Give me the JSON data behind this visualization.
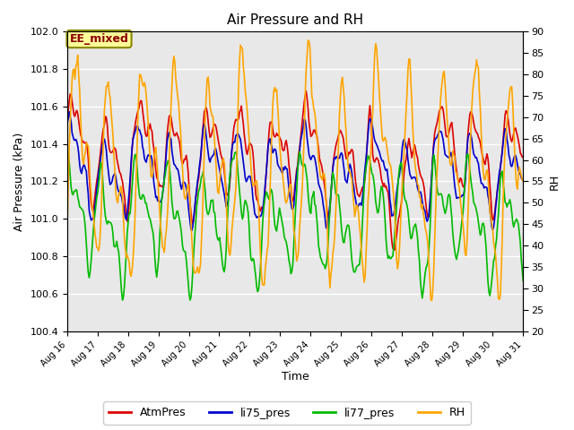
{
  "title": "Air Pressure and RH",
  "xlabel": "Time",
  "ylabel_left": "Air Pressure (kPa)",
  "ylabel_right": "RH",
  "left_ylim": [
    100.4,
    102.0
  ],
  "right_ylim": [
    20,
    90
  ],
  "left_yticks": [
    100.4,
    100.6,
    100.8,
    101.0,
    101.2,
    101.4,
    101.6,
    101.8,
    102.0
  ],
  "right_yticks": [
    20,
    25,
    30,
    35,
    40,
    45,
    50,
    55,
    60,
    65,
    70,
    75,
    80,
    85,
    90
  ],
  "xtick_labels": [
    "Aug 16",
    "Aug 17",
    "Aug 18",
    "Aug 19",
    "Aug 20",
    "Aug 21",
    "Aug 22",
    "Aug 23",
    "Aug 24",
    "Aug 25",
    "Aug 26",
    "Aug 27",
    "Aug 28",
    "Aug 29",
    "Aug 30",
    "Aug 31"
  ],
  "annotation_text": "EE_mixed",
  "annotation_color": "#8B0000",
  "annotation_bg": "#FFFF99",
  "annotation_border": "#888800",
  "line_colors": {
    "AtmPres": "#DD0000",
    "li75_pres": "#0000CC",
    "li77_pres": "#00BB00",
    "RH": "#FFA500"
  },
  "line_widths": {
    "AtmPres": 1.2,
    "li75_pres": 1.2,
    "li77_pres": 1.2,
    "RH": 1.2
  },
  "plot_bg": "#E8E8E8",
  "fig_bg": "#FFFFFF",
  "grid_color": "#FFFFFF",
  "grid_alpha": 1.0,
  "figsize": [
    6.4,
    4.8
  ],
  "dpi": 100
}
